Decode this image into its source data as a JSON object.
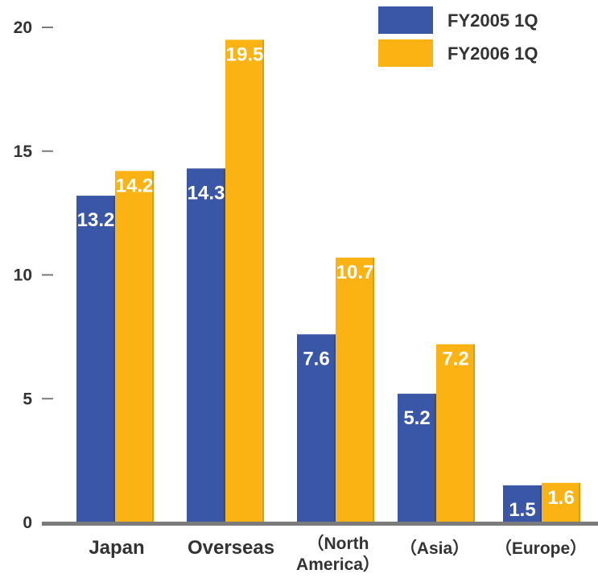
{
  "chart_data": {
    "type": "bar",
    "categories": [
      [
        "Japan"
      ],
      [
        "Overseas"
      ],
      [
        "（North",
        "America）"
      ],
      [
        "（Asia）"
      ],
      [
        "（Europe）"
      ]
    ],
    "series": [
      {
        "name": "FY2005 1Q",
        "color": "#3a56a6",
        "values": [
          13.2,
          14.3,
          7.6,
          5.2,
          1.5
        ]
      },
      {
        "name": "FY2006 1Q",
        "color": "#fbb313",
        "values": [
          14.2,
          19.5,
          10.7,
          7.2,
          1.6
        ]
      }
    ],
    "data_labels": [
      [
        "13.2",
        "14.3",
        "7.6",
        "5.2",
        "1.5"
      ],
      [
        "14.2",
        "19.5",
        "10.7",
        "7.2",
        "1.6"
      ]
    ],
    "yticks": [
      0,
      5,
      10,
      15,
      20
    ],
    "ylim": [
      0,
      20
    ],
    "title": "",
    "xlabel": "",
    "ylabel": "",
    "grid": false,
    "legend_position": "top-right",
    "axis_color": "#7a7a7a"
  }
}
